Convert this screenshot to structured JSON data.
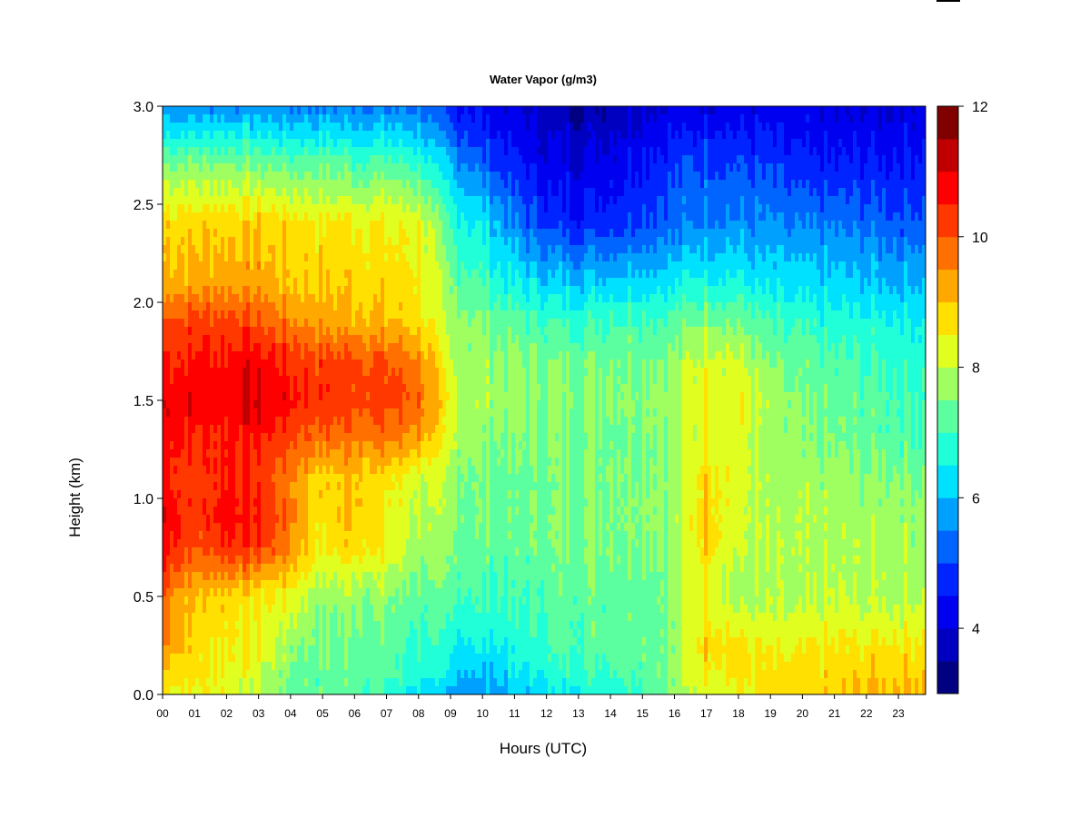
{
  "chart_data": {
    "type": "heatmap",
    "title": "Water Vapor (g/m3)",
    "xlabel": "Hours (UTC)",
    "ylabel": "Height (km)",
    "x_tick_labels": [
      "00",
      "01",
      "02",
      "03",
      "04",
      "05",
      "06",
      "07",
      "08",
      "09",
      "10",
      "11",
      "12",
      "13",
      "14",
      "15",
      "16",
      "17",
      "18",
      "19",
      "20",
      "21",
      "22",
      "23"
    ],
    "x_range": [
      0,
      23.85
    ],
    "y_ticks": [
      0.0,
      0.5,
      1.0,
      1.5,
      2.0,
      2.5,
      3.0
    ],
    "y_tick_labels": [
      "0.0",
      "0.5",
      "1.0",
      "1.5",
      "2.0",
      "2.5",
      "3.0"
    ],
    "ylim": [
      0,
      3.0
    ],
    "colorbar": {
      "min": 3,
      "max": 12,
      "step": 0.5,
      "tick_values": [
        4,
        6,
        8,
        10,
        12
      ],
      "tick_labels": [
        "4",
        "6",
        "8",
        "10",
        "12"
      ],
      "colors": [
        "#000080",
        "#0000c0",
        "#0000f0",
        "#0024ff",
        "#0064ff",
        "#00a0ff",
        "#00e0ff",
        "#20ffd8",
        "#5cffa0",
        "#a0ff60",
        "#e0ff20",
        "#ffe000",
        "#ffa800",
        "#ff7000",
        "#ff3800",
        "#ff0000",
        "#c00000",
        "#800000"
      ]
    },
    "heights_km": [
      0.0,
      0.1,
      0.25,
      0.5,
      0.75,
      0.9,
      1.1,
      1.3,
      1.5,
      1.7,
      1.9,
      2.1,
      2.4,
      2.7,
      3.0
    ],
    "hours": [
      0,
      1,
      2,
      3,
      4,
      5,
      6,
      7,
      8,
      9,
      10,
      11,
      12,
      13,
      14,
      15,
      16,
      17,
      18,
      19,
      20,
      21,
      22,
      23,
      23.85
    ],
    "values": [
      [
        8.6,
        8.4,
        8.4,
        8.0,
        7.3,
        7.2,
        7.3,
        7.0,
        6.3,
        5.8,
        5.6,
        6.0,
        6.3,
        6.6,
        6.8,
        7.0,
        7.5,
        8.2,
        8.4,
        8.6,
        8.7,
        8.8,
        9.0,
        9.1,
        9.2
      ],
      [
        8.9,
        8.7,
        8.4,
        8.1,
        7.5,
        7.3,
        7.4,
        7.2,
        6.7,
        6.2,
        6.0,
        6.3,
        6.6,
        6.9,
        7.1,
        7.3,
        7.7,
        8.6,
        8.6,
        8.6,
        8.7,
        8.8,
        8.9,
        9.0,
        9.0
      ],
      [
        9.6,
        8.7,
        8.6,
        8.5,
        7.7,
        7.4,
        7.4,
        7.2,
        6.9,
        6.6,
        6.5,
        6.6,
        7.0,
        7.2,
        7.3,
        7.4,
        7.6,
        8.9,
        8.7,
        8.3,
        8.4,
        8.5,
        8.5,
        8.6,
        8.6
      ],
      [
        10.0,
        9.0,
        8.9,
        8.6,
        8.4,
        7.6,
        7.8,
        7.6,
        7.3,
        7.2,
        7.0,
        7.0,
        7.2,
        7.3,
        7.3,
        7.3,
        7.6,
        8.5,
        7.7,
        7.8,
        7.8,
        7.9,
        7.9,
        7.9,
        7.9
      ],
      [
        10.9,
        10.0,
        10.5,
        10.3,
        9.6,
        8.5,
        8.9,
        8.4,
        7.8,
        7.5,
        7.3,
        7.3,
        7.4,
        7.5,
        7.6,
        7.6,
        7.7,
        8.9,
        8.0,
        7.8,
        7.8,
        7.8,
        7.8,
        7.8,
        7.8
      ],
      [
        11.1,
        10.2,
        10.8,
        10.5,
        9.7,
        8.6,
        9.2,
        8.5,
        8.0,
        7.6,
        7.4,
        7.3,
        7.4,
        7.5,
        7.6,
        7.7,
        7.7,
        9.0,
        8.1,
        7.8,
        7.8,
        7.8,
        7.8,
        7.8,
        7.7
      ],
      [
        10.7,
        10.2,
        10.6,
        10.3,
        9.6,
        8.7,
        9.1,
        8.6,
        8.2,
        7.7,
        7.4,
        7.3,
        7.4,
        7.5,
        7.6,
        7.6,
        7.7,
        8.9,
        8.2,
        7.7,
        7.7,
        7.7,
        7.6,
        7.6,
        7.5
      ],
      [
        10.9,
        10.4,
        10.6,
        10.6,
        10.2,
        9.8,
        9.7,
        9.6,
        9.4,
        8.0,
        7.6,
        7.5,
        7.5,
        7.5,
        7.5,
        7.6,
        7.6,
        8.4,
        8.2,
        7.6,
        7.5,
        7.4,
        7.3,
        7.2,
        7.1
      ],
      [
        11.1,
        10.8,
        10.9,
        11.1,
        10.7,
        10.3,
        10.3,
        10.2,
        10.0,
        8.2,
        7.8,
        7.7,
        7.6,
        7.6,
        7.7,
        7.7,
        7.8,
        8.6,
        8.4,
        7.7,
        7.4,
        7.3,
        7.2,
        7.1,
        7.0
      ],
      [
        10.5,
        10.6,
        10.7,
        10.8,
        10.4,
        10.2,
        10.2,
        10.0,
        9.6,
        8.0,
        7.7,
        7.6,
        7.5,
        7.4,
        7.5,
        7.5,
        7.6,
        8.3,
        8.1,
        7.4,
        7.2,
        7.1,
        7.0,
        6.9,
        6.8
      ],
      [
        10.1,
        10.2,
        10.3,
        10.0,
        9.6,
        9.3,
        9.2,
        9.0,
        8.8,
        7.7,
        7.5,
        7.2,
        7.0,
        7.0,
        7.1,
        7.1,
        7.2,
        7.6,
        7.4,
        7.0,
        6.8,
        6.7,
        6.7,
        6.6,
        6.5
      ],
      [
        9.2,
        9.2,
        9.4,
        9.3,
        9.0,
        8.9,
        8.9,
        8.8,
        8.6,
        7.4,
        7.0,
        6.5,
        6.2,
        6.1,
        6.2,
        6.3,
        6.4,
        6.7,
        6.6,
        6.3,
        6.2,
        6.1,
        6.1,
        6.0,
        6.0
      ],
      [
        8.9,
        8.8,
        8.9,
        8.9,
        8.7,
        8.6,
        8.6,
        8.5,
        8.4,
        6.9,
        6.4,
        5.5,
        4.9,
        4.7,
        4.8,
        5.1,
        5.3,
        5.6,
        5.6,
        5.5,
        5.4,
        5.4,
        5.3,
        5.2,
        5.2
      ],
      [
        7.6,
        7.5,
        7.6,
        7.4,
        7.4,
        7.3,
        7.2,
        7.2,
        7.0,
        5.9,
        5.2,
        4.6,
        4.2,
        4.1,
        4.3,
        4.6,
        4.9,
        5.1,
        5.0,
        4.8,
        4.6,
        4.5,
        4.6,
        4.6,
        4.7
      ],
      [
        5.6,
        5.6,
        5.6,
        5.6,
        5.5,
        5.5,
        5.5,
        5.4,
        5.3,
        4.6,
        4.3,
        4.0,
        3.7,
        3.5,
        3.7,
        3.9,
        4.1,
        4.2,
        4.2,
        4.1,
        4.1,
        4.0,
        4.0,
        4.1,
        4.1
      ]
    ]
  }
}
